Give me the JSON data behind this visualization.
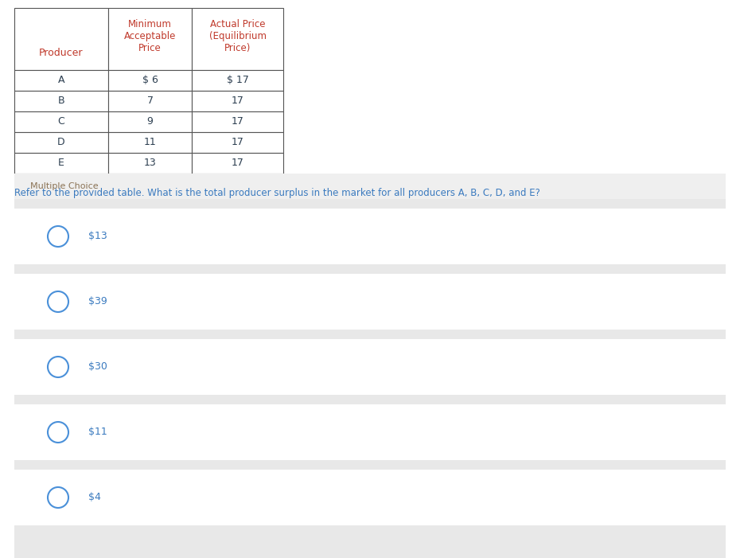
{
  "table_headers_col0": "Producer",
  "table_headers_col1": "Minimum\nAcceptable\nPrice",
  "table_headers_col2": "Actual Price\n(Equilibrium\nPrice)",
  "table_rows": [
    [
      "A",
      "$ 6",
      "$ 17"
    ],
    [
      "B",
      "7",
      "17"
    ],
    [
      "C",
      "9",
      "17"
    ],
    [
      "D",
      "11",
      "17"
    ],
    [
      "E",
      "13",
      "17"
    ]
  ],
  "question": "Refer to the provided table. What is the total producer surplus in the market for all producers A, B, C, D, and E?",
  "section_label": "Multiple Choice",
  "choices": [
    "$13",
    "$39",
    "$30",
    "$11",
    "$4"
  ],
  "header_color": "#c0392b",
  "data_color": "#2c3e50",
  "question_color": "#3a7abf",
  "section_label_color": "#8B7355",
  "choice_color": "#3a7abf",
  "bg_color": "#ffffff",
  "section_bg_color": "#efefef",
  "choice_bg_color": "#ffffff",
  "choice_gap_color": "#e8e8e8",
  "table_border_color": "#555555",
  "circle_edge_color": "#4a90d9",
  "fig_width": 9.3,
  "fig_height": 7.01,
  "dpi": 100
}
